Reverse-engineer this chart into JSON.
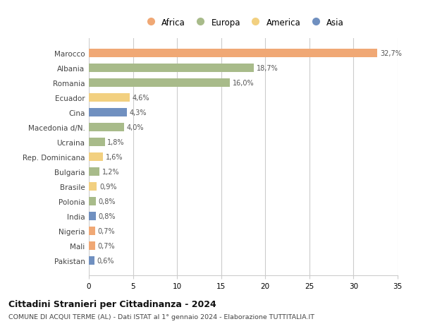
{
  "countries": [
    "Marocco",
    "Albania",
    "Romania",
    "Ecuador",
    "Cina",
    "Macedonia d/N.",
    "Ucraina",
    "Rep. Dominicana",
    "Bulgaria",
    "Brasile",
    "Polonia",
    "India",
    "Nigeria",
    "Mali",
    "Pakistan"
  ],
  "values": [
    32.7,
    18.7,
    16.0,
    4.6,
    4.3,
    4.0,
    1.8,
    1.6,
    1.2,
    0.9,
    0.8,
    0.8,
    0.7,
    0.7,
    0.6
  ],
  "labels": [
    "32,7%",
    "18,7%",
    "16,0%",
    "4,6%",
    "4,3%",
    "4,0%",
    "1,8%",
    "1,6%",
    "1,2%",
    "0,9%",
    "0,8%",
    "0,8%",
    "0,7%",
    "0,7%",
    "0,6%"
  ],
  "continents": [
    "Africa",
    "Europa",
    "Europa",
    "America",
    "Asia",
    "Europa",
    "Europa",
    "America",
    "Europa",
    "America",
    "Europa",
    "Asia",
    "Africa",
    "Africa",
    "Asia"
  ],
  "colors": {
    "Africa": "#F0A875",
    "Europa": "#A8BB8A",
    "America": "#F2D080",
    "Asia": "#7090C0"
  },
  "legend_order": [
    "Africa",
    "Europa",
    "America",
    "Asia"
  ],
  "title": "Cittadini Stranieri per Cittadinanza - 2024",
  "subtitle": "COMUNE DI ACQUI TERME (AL) - Dati ISTAT al 1° gennaio 2024 - Elaborazione TUTTITALIA.IT",
  "xlim": [
    0,
    35
  ],
  "xticks": [
    0,
    5,
    10,
    15,
    20,
    25,
    30,
    35
  ],
  "background_color": "#ffffff",
  "grid_color": "#cccccc",
  "bar_height": 0.55
}
